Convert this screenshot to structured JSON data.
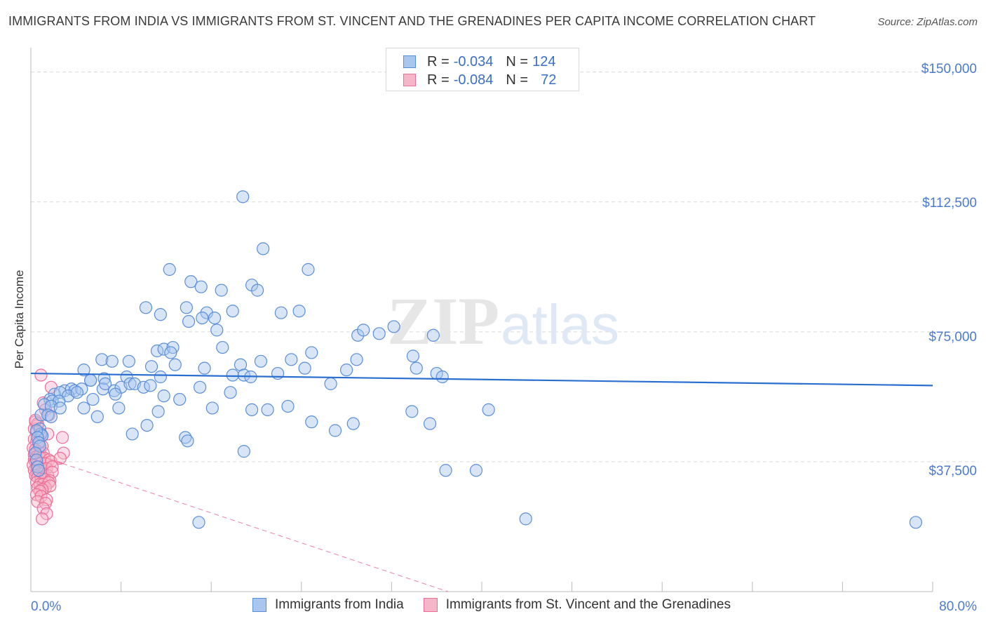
{
  "header": {
    "title": "IMMIGRANTS FROM INDIA VS IMMIGRANTS FROM ST. VINCENT AND THE GRENADINES PER CAPITA INCOME CORRELATION CHART",
    "source": "Source: ZipAtlas.com"
  },
  "watermark": {
    "zip": "ZIP",
    "atlas": "atlas"
  },
  "legend_top": {
    "r_label": "R =",
    "n_label": "N =",
    "india": {
      "r": "-0.034",
      "n": "124"
    },
    "svg": {
      "r": "-0.084",
      "n": "72"
    }
  },
  "colors": {
    "india_fill": "#a9c6ee",
    "india_stroke": "#5b8ed9",
    "india_line": "#2a6fd0",
    "svg_fill": "#f6b6ca",
    "svg_stroke": "#ec6f98",
    "svg_line": "#e8507e",
    "axis_text": "#4a7bd0",
    "grid": "#d9d9d9"
  },
  "chart_data": {
    "type": "scatter",
    "title": "IMMIGRANTS FROM INDIA VS IMMIGRANTS FROM ST. VINCENT AND THE GRENADINES PER CAPITA INCOME CORRELATION CHART",
    "xlabel": "",
    "ylabel": "Per Capita Income",
    "xlim": [
      0,
      80
    ],
    "ylim": [
      0,
      155000
    ],
    "x_tick_labels": [
      "0.0%",
      "80.0%"
    ],
    "y_ticks": [
      37500,
      75000,
      112500,
      150000
    ],
    "y_tick_labels": [
      "$37,500",
      "$75,000",
      "$112,500",
      "$150,000"
    ],
    "series": [
      {
        "name": "Immigrants from India",
        "r": -0.034,
        "n": 124,
        "trend": {
          "x": [
            0,
            80
          ],
          "y": [
            63000,
            59500
          ]
        },
        "points": [
          [
            18.8,
            114000
          ],
          [
            20.6,
            99000
          ],
          [
            12.3,
            93000
          ],
          [
            24.6,
            93000
          ],
          [
            14.2,
            89500
          ],
          [
            15.1,
            88000
          ],
          [
            16.9,
            87000
          ],
          [
            19.6,
            88500
          ],
          [
            20.1,
            87000
          ],
          [
            10.2,
            82000
          ],
          [
            13.8,
            82000
          ],
          [
            11.5,
            80000
          ],
          [
            14.0,
            78000
          ],
          [
            15.6,
            80500
          ],
          [
            15.2,
            79000
          ],
          [
            16.3,
            79000
          ],
          [
            17.9,
            81000
          ],
          [
            22.2,
            80500
          ],
          [
            23.8,
            81000
          ],
          [
            16.5,
            75500
          ],
          [
            29.0,
            74000
          ],
          [
            29.5,
            75500
          ],
          [
            30.9,
            74500
          ],
          [
            32.2,
            76500
          ],
          [
            35.7,
            74000
          ],
          [
            17.0,
            70500
          ],
          [
            11.2,
            69500
          ],
          [
            11.8,
            70000
          ],
          [
            12.6,
            70500
          ],
          [
            12.4,
            69000
          ],
          [
            24.9,
            69000
          ],
          [
            28.9,
            67000
          ],
          [
            33.9,
            68000
          ],
          [
            8.7,
            66500
          ],
          [
            6.3,
            67000
          ],
          [
            7.2,
            66500
          ],
          [
            10.7,
            65000
          ],
          [
            12.8,
            65500
          ],
          [
            15.4,
            64500
          ],
          [
            18.6,
            65500
          ],
          [
            20.4,
            66500
          ],
          [
            23.1,
            67000
          ],
          [
            24.3,
            64500
          ],
          [
            28.0,
            64000
          ],
          [
            34.2,
            64500
          ],
          [
            4.7,
            64000
          ],
          [
            5.3,
            61000
          ],
          [
            6.5,
            61500
          ],
          [
            8.5,
            62000
          ],
          [
            11.5,
            62000
          ],
          [
            17.9,
            62500
          ],
          [
            18.9,
            62500
          ],
          [
            19.5,
            62000
          ],
          [
            21.9,
            63000
          ],
          [
            36.0,
            63000
          ],
          [
            36.5,
            62000
          ],
          [
            26.6,
            60000
          ],
          [
            3.0,
            58000
          ],
          [
            3.6,
            58500
          ],
          [
            3.9,
            58000
          ],
          [
            4.5,
            58500
          ],
          [
            5.3,
            61000
          ],
          [
            6.4,
            58500
          ],
          [
            6.6,
            60000
          ],
          [
            7.4,
            58000
          ],
          [
            8.0,
            59000
          ],
          [
            8.8,
            60000
          ],
          [
            9.2,
            60000
          ],
          [
            10.0,
            59000
          ],
          [
            10.6,
            59500
          ],
          [
            15.0,
            59000
          ],
          [
            2.1,
            57000
          ],
          [
            2.6,
            57500
          ],
          [
            3.3,
            56500
          ],
          [
            4.1,
            57500
          ],
          [
            5.5,
            55500
          ],
          [
            7.5,
            57000
          ],
          [
            11.8,
            56500
          ],
          [
            13.2,
            55500
          ],
          [
            17.7,
            57500
          ],
          [
            1.7,
            55500
          ],
          [
            1.9,
            55000
          ],
          [
            2.5,
            55000
          ],
          [
            1.2,
            54000
          ],
          [
            1.8,
            53500
          ],
          [
            2.6,
            53000
          ],
          [
            4.7,
            53000
          ],
          [
            7.8,
            53000
          ],
          [
            11.3,
            52000
          ],
          [
            16.1,
            53000
          ],
          [
            19.6,
            52500
          ],
          [
            21.0,
            52500
          ],
          [
            22.8,
            53500
          ],
          [
            33.8,
            52000
          ],
          [
            40.6,
            52500
          ],
          [
            0.9,
            51000
          ],
          [
            1.5,
            51000
          ],
          [
            1.8,
            50500
          ],
          [
            5.9,
            50500
          ],
          [
            24.9,
            49000
          ],
          [
            28.6,
            48500
          ],
          [
            10.3,
            48000
          ],
          [
            27.0,
            46500
          ],
          [
            35.4,
            48500
          ],
          [
            0.8,
            47000
          ],
          [
            0.9,
            45500
          ],
          [
            1.0,
            45000
          ],
          [
            9.0,
            45500
          ],
          [
            13.7,
            44500
          ],
          [
            13.9,
            43500
          ],
          [
            18.9,
            40500
          ],
          [
            36.8,
            35000
          ],
          [
            39.5,
            35000
          ],
          [
            14.9,
            20000
          ],
          [
            43.9,
            21000
          ],
          [
            78.5,
            20000
          ],
          [
            0.5,
            46500
          ],
          [
            0.6,
            44500
          ],
          [
            0.7,
            43000
          ],
          [
            0.8,
            42000
          ],
          [
            0.4,
            40000
          ],
          [
            0.5,
            38000
          ],
          [
            0.6,
            36000
          ],
          [
            0.7,
            35000
          ]
        ]
      },
      {
        "name": "Immigrants from St. Vincent and the Grenadines",
        "r": -0.084,
        "n": 72,
        "trend": {
          "x": [
            0,
            2.8,
            37
          ],
          "y": [
            40000,
            37000,
            0
          ]
        },
        "points": [
          [
            0.9,
            62500
          ],
          [
            1.8,
            59000
          ],
          [
            1.1,
            54500
          ],
          [
            1.3,
            52500
          ],
          [
            1.6,
            51000
          ],
          [
            0.4,
            49000
          ],
          [
            0.6,
            48000
          ],
          [
            0.3,
            47000
          ],
          [
            0.5,
            46000
          ],
          [
            0.8,
            45500
          ],
          [
            1.0,
            45000
          ],
          [
            1.5,
            45500
          ],
          [
            2.8,
            44500
          ],
          [
            0.3,
            44000
          ],
          [
            0.5,
            43000
          ],
          [
            0.7,
            42500
          ],
          [
            1.0,
            42000
          ],
          [
            0.2,
            41500
          ],
          [
            0.4,
            41000
          ],
          [
            0.6,
            40500
          ],
          [
            0.8,
            40000
          ],
          [
            1.1,
            40000
          ],
          [
            2.9,
            40000
          ],
          [
            0.3,
            39500
          ],
          [
            0.5,
            39000
          ],
          [
            0.7,
            39000
          ],
          [
            0.9,
            38500
          ],
          [
            1.2,
            38500
          ],
          [
            1.6,
            38000
          ],
          [
            0.3,
            38000
          ],
          [
            0.4,
            37500
          ],
          [
            0.6,
            37000
          ],
          [
            0.9,
            37000
          ],
          [
            1.3,
            37000
          ],
          [
            1.8,
            37500
          ],
          [
            2.6,
            38500
          ],
          [
            0.2,
            36500
          ],
          [
            0.5,
            36000
          ],
          [
            0.7,
            36000
          ],
          [
            1.0,
            35500
          ],
          [
            1.4,
            35500
          ],
          [
            1.9,
            36000
          ],
          [
            0.3,
            35000
          ],
          [
            0.6,
            34500
          ],
          [
            0.8,
            34000
          ],
          [
            1.1,
            34000
          ],
          [
            1.5,
            33500
          ],
          [
            1.9,
            34500
          ],
          [
            0.4,
            33500
          ],
          [
            0.6,
            33000
          ],
          [
            0.9,
            32500
          ],
          [
            1.2,
            32500
          ],
          [
            1.7,
            32000
          ],
          [
            0.5,
            31500
          ],
          [
            0.8,
            31000
          ],
          [
            1.1,
            31000
          ],
          [
            1.6,
            31500
          ],
          [
            1.3,
            30000
          ],
          [
            1.7,
            30500
          ],
          [
            0.6,
            30000
          ],
          [
            1.0,
            29500
          ],
          [
            0.8,
            29000
          ],
          [
            0.5,
            28000
          ],
          [
            0.9,
            27500
          ],
          [
            1.4,
            26500
          ],
          [
            0.6,
            26000
          ],
          [
            1.3,
            25500
          ],
          [
            1.1,
            24000
          ],
          [
            1.4,
            22500
          ],
          [
            1.0,
            21000
          ],
          [
            0.6,
            48500
          ],
          [
            0.4,
            49500
          ]
        ]
      }
    ]
  },
  "legend_bottom": {
    "india": "Immigrants from India",
    "svg": "Immigrants from St. Vincent and the Grenadines"
  }
}
